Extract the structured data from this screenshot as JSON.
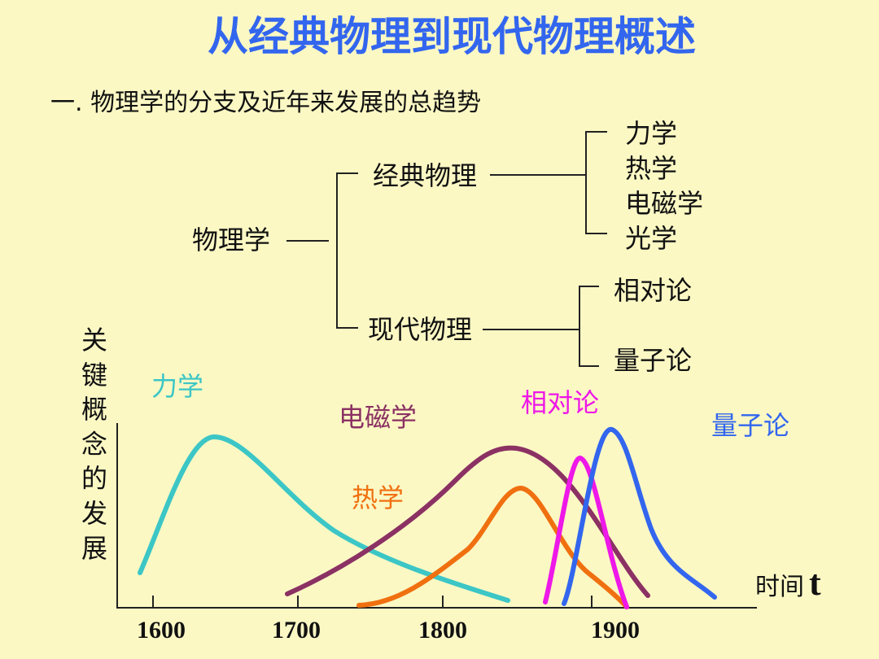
{
  "title": "从经典物理到现代物理概述",
  "subtitle": "一. 物理学的分支及近年来发展的总趋势",
  "tree": {
    "root": "物理学",
    "classical": {
      "label": "经典物理",
      "children": [
        "力学",
        "热学",
        "电磁学",
        "光学"
      ]
    },
    "modern": {
      "label": "现代物理",
      "children": [
        "相对论",
        "量子论"
      ]
    }
  },
  "chart": {
    "ylabel_chars": [
      "关",
      "键",
      "概",
      "念",
      "的",
      "发",
      "展"
    ],
    "xlabel": "时间",
    "xlabel_var": "t",
    "xticks": [
      "1600",
      "1700",
      "1800",
      "1900"
    ],
    "curves": [
      {
        "name": "力学",
        "color": "#3cc6c6"
      },
      {
        "name": "电磁学",
        "color": "#8b3163"
      },
      {
        "name": "热学",
        "color": "#f07010"
      },
      {
        "name": "相对论",
        "color": "#ee18e8"
      },
      {
        "name": "量子论",
        "color": "#3366ee"
      }
    ]
  }
}
